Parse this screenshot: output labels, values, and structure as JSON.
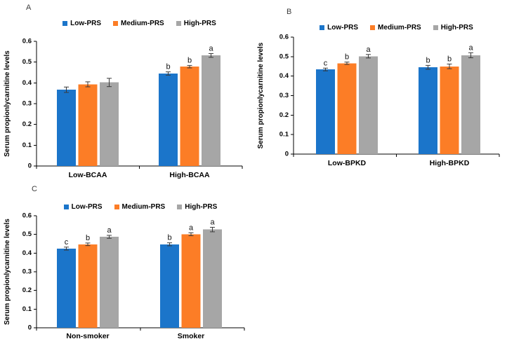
{
  "figure": {
    "background": "#ffffff",
    "palette": {
      "low_prs": "#1B75CA",
      "medium_prs": "#FC7D26",
      "high_prs": "#A6A6A6",
      "error_bar": "#3a3a3a",
      "axis": "#000000"
    }
  },
  "chart_data": [
    {
      "type": "bar",
      "panel": "A",
      "ylabel": "Serum propionlycarnitine levels",
      "ylim": [
        0,
        0.6
      ],
      "yticks": [
        0,
        0.1,
        0.2,
        0.3,
        0.4,
        0.5,
        0.6
      ],
      "grid": false,
      "legend_position": "top",
      "categories": [
        "Low-BCAA",
        "High-BCAA"
      ],
      "series": [
        {
          "name": "Low-PRS",
          "color": "#1B75CA",
          "values": [
            0.367,
            0.445
          ],
          "errors": [
            0.013,
            0.008
          ],
          "letters": [
            "",
            "b"
          ]
        },
        {
          "name": "Medium-PRS",
          "color": "#FC7D26",
          "values": [
            0.393,
            0.478
          ],
          "errors": [
            0.012,
            0.006
          ],
          "letters": [
            "",
            "b"
          ]
        },
        {
          "name": "High-PRS",
          "color": "#A6A6A6",
          "values": [
            0.402,
            0.532
          ],
          "errors": [
            0.02,
            0.009
          ],
          "letters": [
            "",
            "a"
          ]
        }
      ]
    },
    {
      "type": "bar",
      "panel": "B",
      "ylabel": "Serum propionlycarnitine levels",
      "ylim": [
        0,
        0.6
      ],
      "yticks": [
        0,
        0.1,
        0.2,
        0.3,
        0.4,
        0.5,
        0.6
      ],
      "grid": false,
      "legend_position": "top",
      "categories": [
        "Low-BPKD",
        "High-BPKD"
      ],
      "series": [
        {
          "name": "Low-PRS",
          "color": "#1B75CA",
          "values": [
            0.434,
            0.445
          ],
          "errors": [
            0.007,
            0.01
          ],
          "letters": [
            "c",
            "b"
          ]
        },
        {
          "name": "Medium-PRS",
          "color": "#FC7D26",
          "values": [
            0.466,
            0.45
          ],
          "errors": [
            0.006,
            0.012
          ],
          "letters": [
            "b",
            "b"
          ]
        },
        {
          "name": "High-PRS",
          "color": "#A6A6A6",
          "values": [
            0.502,
            0.507
          ],
          "errors": [
            0.009,
            0.013
          ],
          "letters": [
            "a",
            "a"
          ]
        }
      ]
    },
    {
      "type": "bar",
      "panel": "C",
      "ylabel": "Serum propionlycarnitine levels",
      "ylim": [
        0,
        0.6
      ],
      "yticks": [
        0,
        0.1,
        0.2,
        0.3,
        0.4,
        0.5,
        0.6
      ],
      "grid": false,
      "legend_position": "top",
      "categories": [
        "Non-smoker",
        "Smoker"
      ],
      "series": [
        {
          "name": "Low-PRS",
          "color": "#1B75CA",
          "values": [
            0.424,
            0.447
          ],
          "errors": [
            0.008,
            0.008
          ],
          "letters": [
            "c",
            "b"
          ]
        },
        {
          "name": "Medium-PRS",
          "color": "#FC7D26",
          "values": [
            0.447,
            0.501
          ],
          "errors": [
            0.007,
            0.008
          ],
          "letters": [
            "b",
            "a"
          ]
        },
        {
          "name": "High-PRS",
          "color": "#A6A6A6",
          "values": [
            0.487,
            0.526
          ],
          "errors": [
            0.008,
            0.012
          ],
          "letters": [
            "a",
            "a"
          ]
        }
      ]
    }
  ]
}
